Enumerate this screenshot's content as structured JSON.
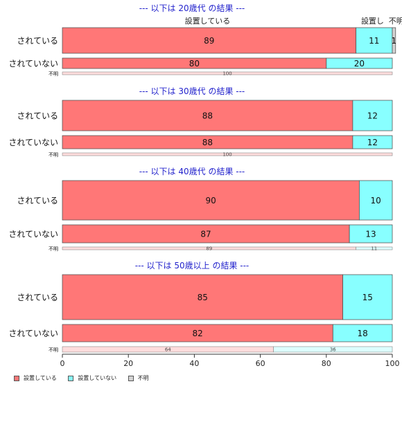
{
  "chart_data": {
    "type": "bar",
    "orientation": "horizontal",
    "stacked": true,
    "xlim": [
      0,
      100
    ],
    "xticks": [
      "0",
      "20",
      "40",
      "60",
      "80",
      "100"
    ],
    "column_headers": [
      "設置している",
      "設置し",
      "不明"
    ],
    "series": [
      {
        "name": "設置している",
        "color": "#ff7777"
      },
      {
        "name": "設置していない",
        "color": "#88ffff"
      },
      {
        "name": "不明",
        "color": "#d3d3d3"
      }
    ],
    "panels": [
      {
        "title": "--- 以下は 20歳代 の結果 ---",
        "rows": [
          {
            "label": "されている",
            "values": [
              89,
              11,
              1
            ]
          },
          {
            "label": "されていない",
            "values": [
              80,
              20,
              0
            ]
          },
          {
            "label": "不明",
            "values": [
              100,
              0,
              0
            ]
          }
        ]
      },
      {
        "title": "--- 以下は 30歳代 の結果 ---",
        "rows": [
          {
            "label": "されている",
            "values": [
              88,
              12,
              0
            ]
          },
          {
            "label": "されていない",
            "values": [
              88,
              12,
              0
            ]
          },
          {
            "label": "不明",
            "values": [
              100,
              0,
              0
            ]
          }
        ]
      },
      {
        "title": "--- 以下は 40歳代 の結果 ---",
        "rows": [
          {
            "label": "されている",
            "values": [
              90,
              10,
              0
            ]
          },
          {
            "label": "されていない",
            "values": [
              87,
              13,
              0
            ]
          },
          {
            "label": "不明",
            "values": [
              89,
              11,
              0
            ]
          }
        ]
      },
      {
        "title": "--- 以下は 50歳以上 の結果 ---",
        "rows": [
          {
            "label": "されている",
            "values": [
              85,
              15,
              0
            ]
          },
          {
            "label": "されていない",
            "values": [
              82,
              18,
              0
            ]
          },
          {
            "label": "不明",
            "values": [
              64,
              36,
              0
            ]
          }
        ]
      }
    ]
  }
}
